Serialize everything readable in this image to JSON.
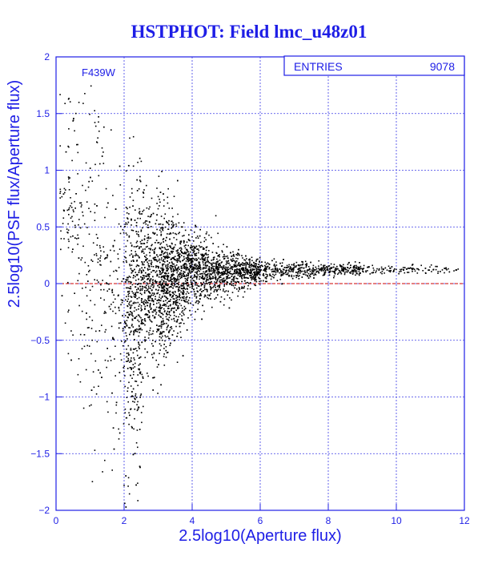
{
  "title": "HSTPHOT: Field lmc_u48z01",
  "colors": {
    "axis": "#1e1ee6",
    "title": "#1e1ee6",
    "grid": "#3c3ce6",
    "points": "#000000",
    "reference_line": "#cc0000",
    "background": "#ffffff"
  },
  "stats_box": {
    "label": "ENTRIES",
    "value": "9078"
  },
  "chart_data": {
    "type": "scatter",
    "title": "HSTPHOT: Field lmc_u48z01",
    "annotation": "F439W",
    "xlabel": "2.5log10(Aperture flux)",
    "ylabel": "2.5log10(PSF flux/Aperture flux)",
    "xlim": [
      0,
      12
    ],
    "ylim": [
      -2,
      2
    ],
    "xticks": [
      0,
      2,
      4,
      6,
      8,
      10,
      12
    ],
    "xtick_labels": [
      "0",
      "2",
      "4",
      "6",
      "8",
      "10",
      "12"
    ],
    "yticks": [
      -2,
      -1.5,
      -1,
      -0.5,
      0,
      0.5,
      1,
      1.5,
      2
    ],
    "ytick_labels": [
      "−2",
      "−1.5",
      "−1",
      "−0.5",
      "0",
      "0.5",
      "1",
      "1.5",
      "2"
    ],
    "grid": true,
    "reference_line_y": 0,
    "entries": 9078,
    "distribution": {
      "description_points": [
        {
          "x": 0.5,
          "y_center": 0.9,
          "y_spread": 1.0
        },
        {
          "x": 1.0,
          "y_center": 0.5,
          "y_spread": 1.4
        },
        {
          "x": 2.0,
          "y_center": 0.05,
          "y_spread": 1.0
        },
        {
          "x": 3.0,
          "y_center": 0.0,
          "y_spread": 0.7
        },
        {
          "x": 4.0,
          "y_center": 0.1,
          "y_spread": 0.3
        },
        {
          "x": 6.0,
          "y_center": 0.12,
          "y_spread": 0.1
        },
        {
          "x": 8.0,
          "y_center": 0.13,
          "y_spread": 0.05
        },
        {
          "x": 10.5,
          "y_center": 0.13,
          "y_spread": 0.04
        }
      ],
      "x_range": [
        0.1,
        11.8
      ]
    }
  }
}
